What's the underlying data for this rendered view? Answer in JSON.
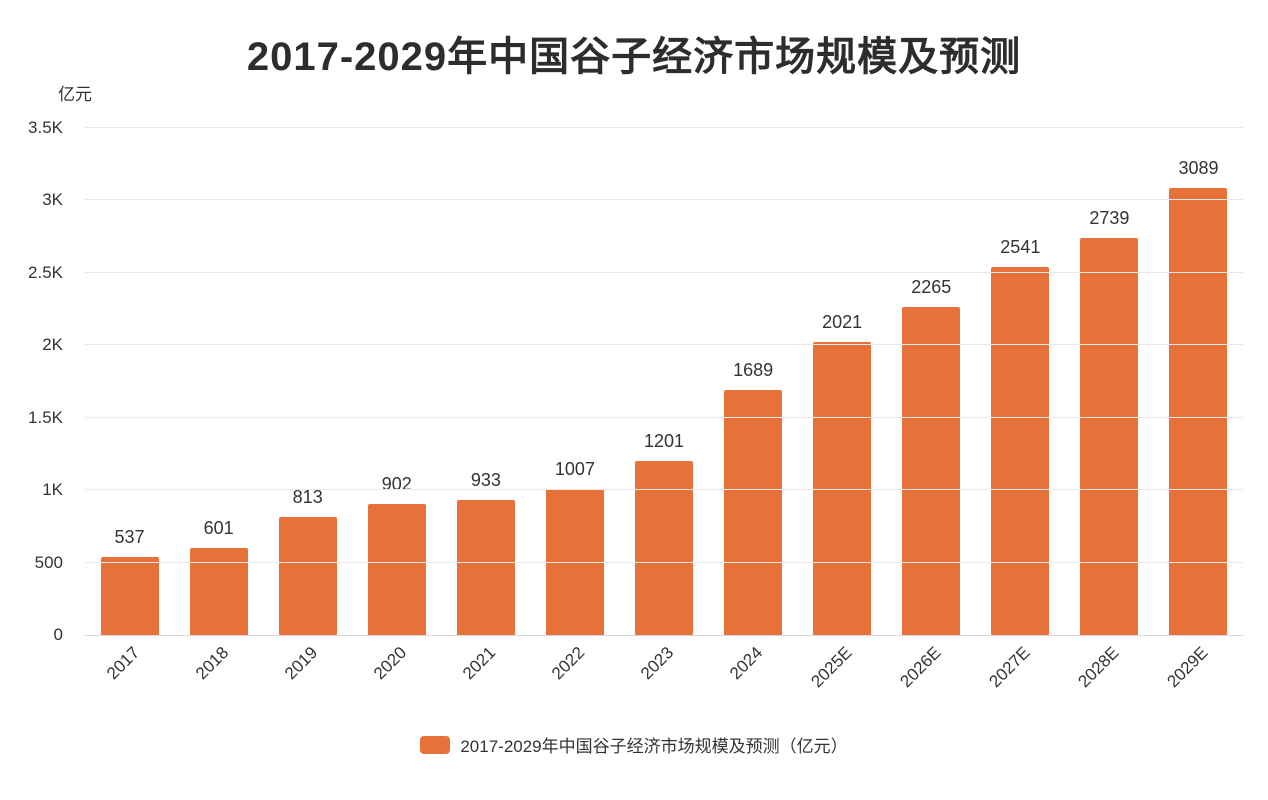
{
  "title": "2017-2029年中国谷子经济市场规模及预测",
  "unit_label": "亿元",
  "legend": {
    "label": "2017-2029年中国谷子经济市场规模及预测（亿元）"
  },
  "colors": {
    "bar": "#E8713A",
    "grid": "#e9e9e9",
    "axis": "#d8d8d8",
    "text": "#333333"
  },
  "chart_data": {
    "type": "bar",
    "title": "2017-2029年中国谷子经济市场规模及预测",
    "ylabel": "亿元",
    "xlabel": "",
    "categories": [
      "2017",
      "2018",
      "2019",
      "2020",
      "2021",
      "2022",
      "2023",
      "2024",
      "2025E",
      "2026E",
      "2027E",
      "2028E",
      "2029E"
    ],
    "values": [
      537,
      601,
      813,
      902,
      933,
      1007,
      1201,
      1689,
      2021,
      2265,
      2541,
      2739,
      3089
    ],
    "yticks": [
      {
        "label": "0",
        "value": 0
      },
      {
        "label": "500",
        "value": 500
      },
      {
        "label": "1K",
        "value": 1000
      },
      {
        "label": "1.5K",
        "value": 1500
      },
      {
        "label": "2K",
        "value": 2000
      },
      {
        "label": "2.5K",
        "value": 2500
      },
      {
        "label": "3K",
        "value": 3000
      },
      {
        "label": "3.5K",
        "value": 3500
      }
    ],
    "ylim": [
      0,
      3500
    ],
    "grid": true,
    "legend_entries": [
      "2017-2029年中国谷子经济市场规模及预测（亿元）"
    ],
    "legend_position": "bottom"
  }
}
